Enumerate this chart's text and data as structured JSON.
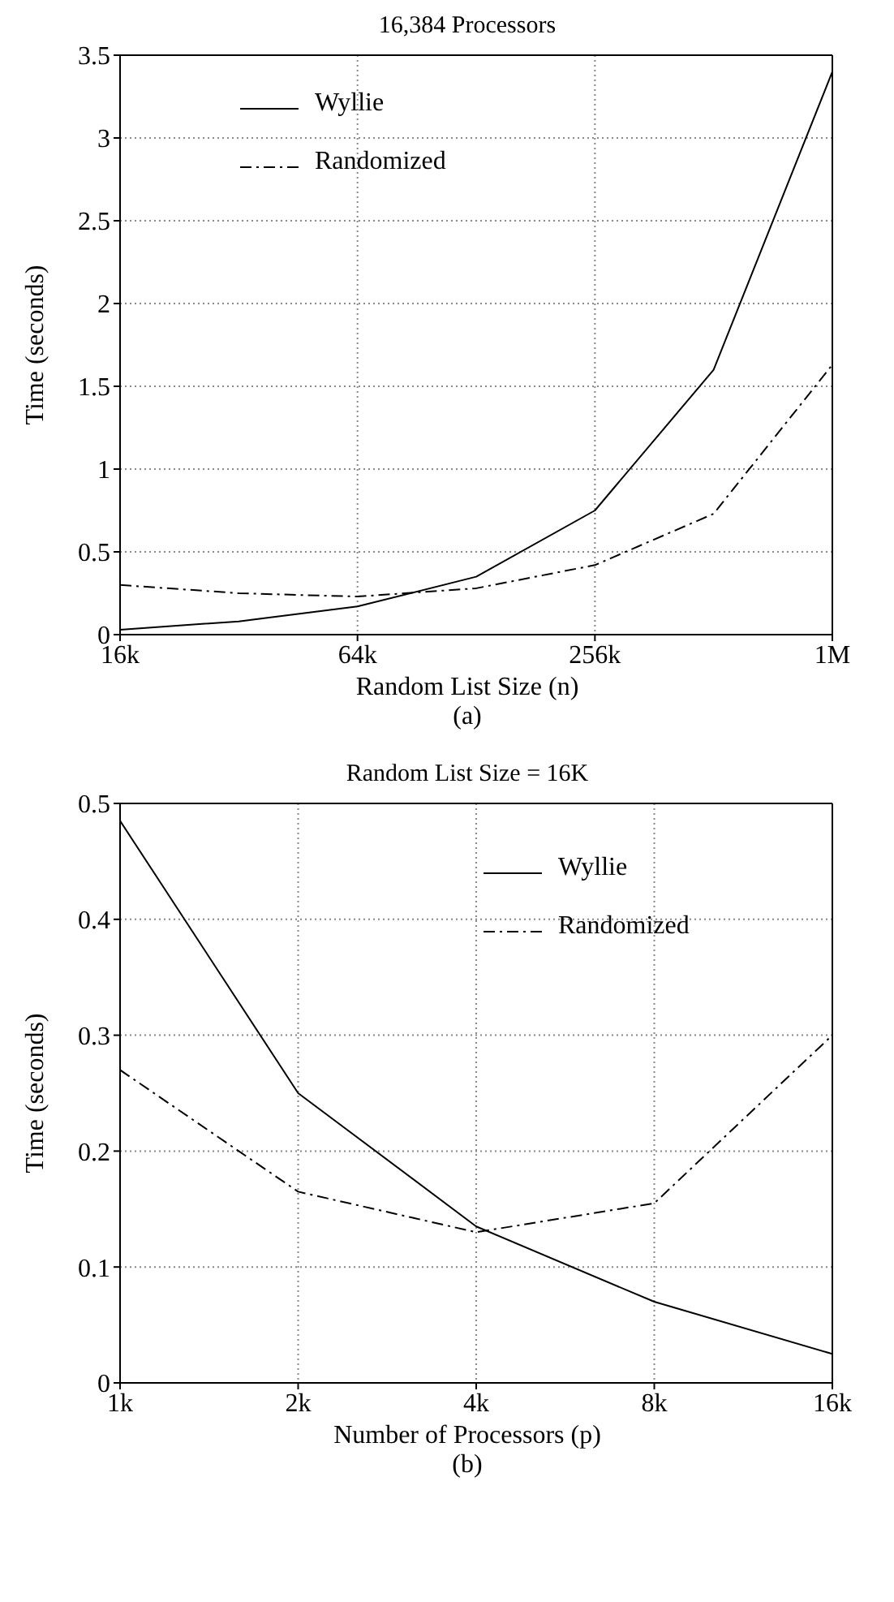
{
  "chart_data": [
    {
      "type": "line",
      "title": "16,384 Processors",
      "xlabel": "Random List Size (n)",
      "ylabel": "Time  (seconds)",
      "annotations": [
        "(a)"
      ],
      "categories": [
        "16k",
        null,
        "64k",
        null,
        "256k",
        null,
        "1M"
      ],
      "ylim": [
        0,
        3.5
      ],
      "yticks": [
        0,
        0.5,
        1,
        1.5,
        2,
        2.5,
        3,
        3.5
      ],
      "grid": true,
      "legend": "top left",
      "series": [
        {
          "name": "Wyllie",
          "color": "#000000",
          "line_style": "solid",
          "values": [
            0.03,
            0.08,
            0.17,
            0.35,
            0.75,
            1.6,
            3.4
          ]
        },
        {
          "name": "Randomized",
          "color": "#000000",
          "line_style": "dashed",
          "values": [
            0.3,
            0.25,
            0.23,
            0.28,
            0.42,
            0.73,
            1.63
          ]
        }
      ]
    },
    {
      "type": "line",
      "title": "Random List Size = 16K",
      "xlabel": "Number of Processors  (p)",
      "ylabel": "Time  (seconds)",
      "annotations": [
        "(b)"
      ],
      "x": [
        1,
        2,
        4,
        8,
        16
      ],
      "log": "x",
      "xlim": [
        1,
        16
      ],
      "xticks": [
        {
          "value": 1,
          "label": "1k"
        },
        {
          "value": 2,
          "label": "2k"
        },
        {
          "value": 4,
          "label": "4k"
        },
        {
          "value": 8,
          "label": "8k"
        },
        {
          "value": 16,
          "label": "16k"
        }
      ],
      "ylim": [
        0,
        0.5
      ],
      "yticks": [
        0,
        0.1,
        0.2,
        0.3,
        0.4,
        0.5
      ],
      "grid": true,
      "legend": "top right",
      "series": [
        {
          "name": "Wyllie",
          "color": "#000000",
          "line_style": "solid",
          "values": [
            0.485,
            0.25,
            0.135,
            0.07,
            0.025
          ]
        },
        {
          "name": "Randomized",
          "color": "#000000",
          "line_style": "dashed",
          "values": [
            0.27,
            0.165,
            0.13,
            0.155,
            0.3
          ]
        }
      ]
    }
  ]
}
